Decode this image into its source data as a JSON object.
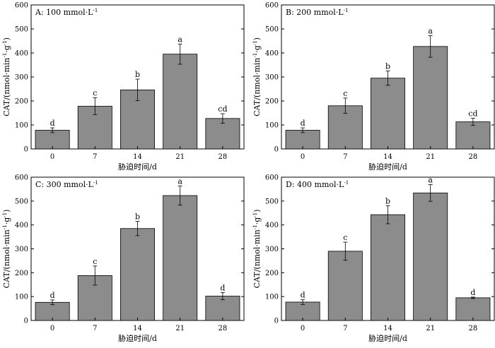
{
  "chart_data": [
    {
      "type": "bar",
      "title": "A: 100 mmol·L",
      "title_sup": "-1",
      "xlabel": "胁迫时间/d",
      "ylabel_main": "CAT/(nmol·min",
      "ylabel_sup1": "-1",
      "ylabel_mid": "·g",
      "ylabel_sup2": "-1",
      "ylabel_end": ")",
      "categories": [
        "0",
        "7",
        "14",
        "21",
        "28"
      ],
      "values": [
        78,
        178,
        246,
        395,
        127
      ],
      "errors": [
        10,
        35,
        45,
        42,
        20
      ],
      "letters": [
        "d",
        "c",
        "b",
        "a",
        "cd"
      ],
      "ylim": [
        0,
        600
      ],
      "yticks": [
        "0",
        "100",
        "200",
        "300",
        "400",
        "500",
        "600"
      ],
      "bar_color": "#8c8c8c"
    },
    {
      "type": "bar",
      "title": "B: 200 mmol·L",
      "title_sup": "-1",
      "xlabel": "胁迫时间/d",
      "ylabel_main": "CAT/(nmol·min",
      "ylabel_sup1": "-1",
      "ylabel_mid": "·g",
      "ylabel_sup2": "-1",
      "ylabel_end": ")",
      "categories": [
        "0",
        "7",
        "14",
        "21",
        "28"
      ],
      "values": [
        78,
        180,
        295,
        427,
        113
      ],
      "errors": [
        10,
        32,
        30,
        45,
        15
      ],
      "letters": [
        "d",
        "c",
        "b",
        "a",
        "cd"
      ],
      "ylim": [
        0,
        600
      ],
      "yticks": [
        "0",
        "100",
        "200",
        "300",
        "400",
        "500",
        "600"
      ],
      "bar_color": "#8c8c8c"
    },
    {
      "type": "bar",
      "title": "C: 300 mmol·L",
      "title_sup": "-1",
      "xlabel": "胁迫时间/d",
      "ylabel_main": "CAT/(nmol·min",
      "ylabel_sup1": "-1",
      "ylabel_mid": "·g",
      "ylabel_sup2": "-1",
      "ylabel_end": ")",
      "categories": [
        "0",
        "7",
        "14",
        "21",
        "28"
      ],
      "values": [
        76,
        188,
        385,
        523,
        102
      ],
      "errors": [
        10,
        40,
        30,
        40,
        15
      ],
      "letters": [
        "d",
        "c",
        "b",
        "a",
        "d"
      ],
      "ylim": [
        0,
        600
      ],
      "yticks": [
        "0",
        "100",
        "200",
        "300",
        "400",
        "500",
        "600"
      ],
      "bar_color": "#8c8c8c"
    },
    {
      "type": "bar",
      "title": "D: 400 mmol·L",
      "title_sup": "-1",
      "xlabel": "胁迫时间/d",
      "ylabel_main": "CAT/(nmol·min",
      "ylabel_sup1": "-1",
      "ylabel_mid": "·g",
      "ylabel_sup2": "-1",
      "ylabel_end": ")",
      "categories": [
        "0",
        "7",
        "14",
        "21",
        "28"
      ],
      "values": [
        77,
        290,
        443,
        534,
        95
      ],
      "errors": [
        10,
        38,
        38,
        35,
        3
      ],
      "letters": [
        "d",
        "c",
        "b",
        "a",
        "d"
      ],
      "ylim": [
        0,
        600
      ],
      "yticks": [
        "0",
        "100",
        "200",
        "300",
        "400",
        "500",
        "600"
      ],
      "bar_color": "#8c8c8c"
    }
  ]
}
